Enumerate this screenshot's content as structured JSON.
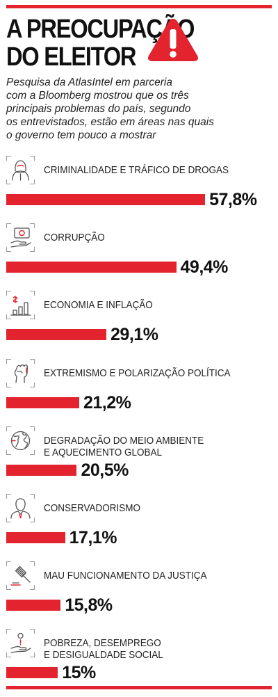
{
  "title_lines": [
    "A PREOCUPAÇÃO",
    "DO ELEITOR"
  ],
  "subtitle_lines": [
    "Pesquisa da AtlasIntel em parceria",
    "com a Bloomberg mostrou que os três",
    "principais problemas do país, segundo",
    "os entrevistados, estão em áreas nas quais",
    "o governo tem pouco a mostrar"
  ],
  "colors": {
    "accent": "#e3232d",
    "text": "#111111"
  },
  "chart_data": {
    "type": "bar",
    "orientation": "horizontal",
    "unit": "%",
    "categories": [
      "CRIMINALIDADE E TRÁFICO DE DROGAS",
      "CORRUPÇÃO",
      "ECONOMIA E INFLAÇÃO",
      "EXTREMISMO E POLARIZAÇÃO POLÍTICA",
      "DEGRADAÇÃO DO MEIO AMBIENTE\nE AQUECIMENTO GLOBAL",
      "CONSERVADORISMO",
      "MAU FUNCIONAMENTO DA JUSTIÇA",
      "POBREZA, DESEMPREGO\nE DESIGUALDADE SOCIAL"
    ],
    "values": [
      57.8,
      49.4,
      29.1,
      21.2,
      20.5,
      17.1,
      15.8,
      15
    ],
    "value_labels": [
      "57,8%",
      "49,4%",
      "29,1%",
      "21,2%",
      "20,5%",
      "17,1%",
      "15,8%",
      "15%"
    ],
    "icons": [
      "hooded-figure-icon",
      "money-hand-icon",
      "coin-bar-chart-icon",
      "raised-fist-icon",
      "globe-icon",
      "man-suit-icon",
      "gavel-icon",
      "coin-hand-icon"
    ]
  }
}
